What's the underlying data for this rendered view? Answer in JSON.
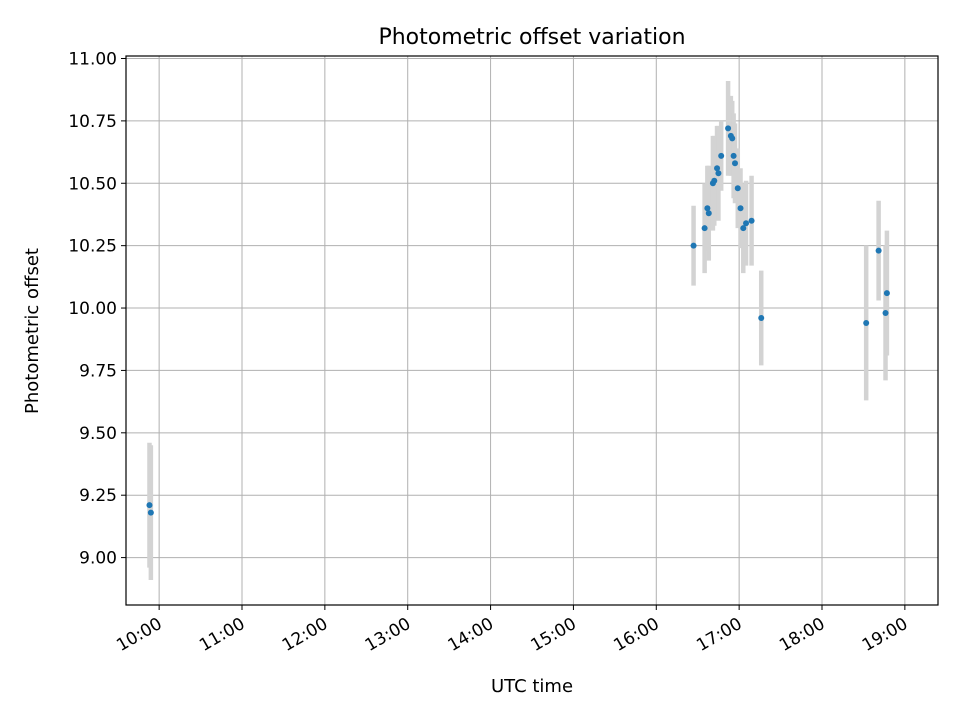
{
  "chart_data": {
    "type": "scatter",
    "title": "Photometric offset variation",
    "xlabel": "UTC time",
    "ylabel": "Photometric offset",
    "x_ticks": [
      "10:00",
      "11:00",
      "12:00",
      "13:00",
      "14:00",
      "15:00",
      "16:00",
      "17:00",
      "18:00",
      "19:00"
    ],
    "y_ticks": [
      "9.00",
      "9.25",
      "9.50",
      "9.75",
      "10.00",
      "10.25",
      "10.50",
      "10.75",
      "11.00"
    ],
    "xlim": [
      "09:36",
      "19:24"
    ],
    "ylim": [
      8.81,
      11.01
    ],
    "grid": true,
    "marker_color": "#1f77b4",
    "errorbar_color": "#d3d3d3",
    "points": [
      {
        "x": "09:53",
        "y": 9.21,
        "err": 0.25
      },
      {
        "x": "09:54",
        "y": 9.18,
        "err": 0.27
      },
      {
        "x": "16:27",
        "y": 10.25,
        "err": 0.16
      },
      {
        "x": "16:35",
        "y": 10.32,
        "err": 0.18
      },
      {
        "x": "16:37",
        "y": 10.4,
        "err": 0.17
      },
      {
        "x": "16:38",
        "y": 10.38,
        "err": 0.19
      },
      {
        "x": "16:41",
        "y": 10.5,
        "err": 0.19
      },
      {
        "x": "16:42",
        "y": 10.51,
        "err": 0.18
      },
      {
        "x": "16:44",
        "y": 10.56,
        "err": 0.17
      },
      {
        "x": "16:45",
        "y": 10.54,
        "err": 0.19
      },
      {
        "x": "16:47",
        "y": 10.61,
        "err": 0.14
      },
      {
        "x": "16:52",
        "y": 10.72,
        "err": 0.19
      },
      {
        "x": "16:54",
        "y": 10.69,
        "err": 0.16
      },
      {
        "x": "16:55",
        "y": 10.68,
        "err": 0.15
      },
      {
        "x": "16:56",
        "y": 10.61,
        "err": 0.17
      },
      {
        "x": "16:57",
        "y": 10.58,
        "err": 0.16
      },
      {
        "x": "16:59",
        "y": 10.48,
        "err": 0.16
      },
      {
        "x": "17:01",
        "y": 10.4,
        "err": 0.16
      },
      {
        "x": "17:03",
        "y": 10.32,
        "err": 0.18
      },
      {
        "x": "17:05",
        "y": 10.34,
        "err": 0.17
      },
      {
        "x": "17:09",
        "y": 10.35,
        "err": 0.18
      },
      {
        "x": "17:16",
        "y": 9.96,
        "err": 0.19
      },
      {
        "x": "18:32",
        "y": 9.94,
        "err": 0.31
      },
      {
        "x": "18:41",
        "y": 10.23,
        "err": 0.2
      },
      {
        "x": "18:46",
        "y": 9.98,
        "err": 0.27
      },
      {
        "x": "18:47",
        "y": 10.06,
        "err": 0.25
      }
    ]
  }
}
